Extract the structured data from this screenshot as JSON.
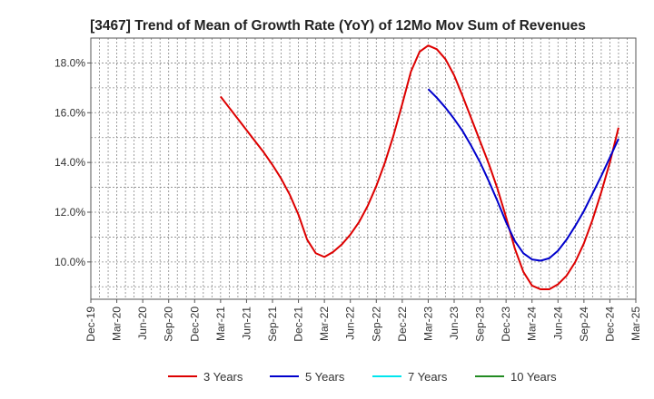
{
  "chart_data": {
    "type": "line",
    "title": "[3467]  Trend of Mean of Growth Rate (YoY) of 12Mo Mov Sum of Revenues",
    "xlabel": "",
    "ylabel": "",
    "x_ticks": [
      "Dec-19",
      "Mar-20",
      "Jun-20",
      "Sep-20",
      "Dec-20",
      "Mar-21",
      "Jun-21",
      "Sep-21",
      "Dec-21",
      "Mar-22",
      "Jun-22",
      "Sep-22",
      "Dec-22",
      "Mar-23",
      "Jun-23",
      "Sep-23",
      "Dec-23",
      "Mar-24",
      "Jun-24",
      "Sep-24",
      "Dec-24",
      "Mar-25"
    ],
    "y_ticks": [
      10.0,
      12.0,
      14.0,
      16.0,
      18.0
    ],
    "y_tick_labels": [
      "10.0%",
      "12.0%",
      "14.0%",
      "16.0%",
      "18.0%"
    ],
    "ylim": [
      8.5,
      19.0
    ],
    "x_range_months": [
      0,
      63
    ],
    "grid": true,
    "legend_position": "bottom",
    "series": [
      {
        "name": "3 Years",
        "color": "#dd0000",
        "start_month": 15,
        "values": [
          16.65,
          16.2,
          15.75,
          15.3,
          14.85,
          14.4,
          13.9,
          13.35,
          12.7,
          11.9,
          10.9,
          10.35,
          10.2,
          10.4,
          10.7,
          11.1,
          11.6,
          12.25,
          13.05,
          14.0,
          15.1,
          16.35,
          17.65,
          18.45,
          18.7,
          18.55,
          18.15,
          17.5,
          16.65,
          15.75,
          14.85,
          13.95,
          12.95,
          11.8,
          10.55,
          9.6,
          9.05,
          8.9,
          8.9,
          9.1,
          9.45,
          10.0,
          10.75,
          11.7,
          12.8,
          14.0,
          15.4
        ]
      },
      {
        "name": "5 Years",
        "color": "#0000cc",
        "start_month": 39,
        "values": [
          16.95,
          16.6,
          16.2,
          15.75,
          15.25,
          14.65,
          14.0,
          13.25,
          12.45,
          11.6,
          10.85,
          10.35,
          10.1,
          10.05,
          10.15,
          10.45,
          10.9,
          11.45,
          12.05,
          12.75,
          13.45,
          14.2,
          14.95
        ]
      },
      {
        "name": "7 Years",
        "color": "#00e5ee",
        "start_month": 0,
        "values": []
      },
      {
        "name": "10 Years",
        "color": "#228b22",
        "start_month": 0,
        "values": []
      }
    ]
  }
}
